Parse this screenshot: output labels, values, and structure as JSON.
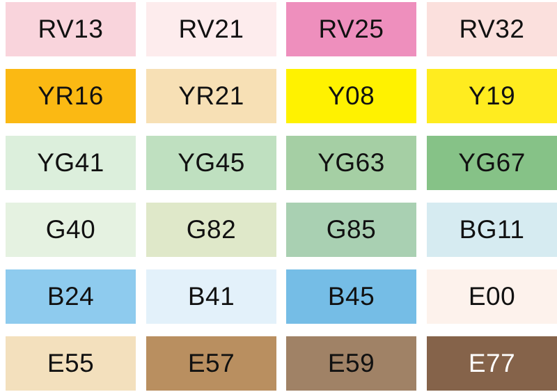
{
  "swatches": [
    {
      "code": "RV13",
      "color": "#f9d4dc",
      "text": "#111111"
    },
    {
      "code": "RV21",
      "color": "#fdeced",
      "text": "#111111"
    },
    {
      "code": "RV25",
      "color": "#ee8fbd",
      "text": "#111111"
    },
    {
      "code": "RV32",
      "color": "#fbe0dd",
      "text": "#111111"
    },
    {
      "code": "YR16",
      "color": "#fbb913",
      "text": "#111111"
    },
    {
      "code": "YR21",
      "color": "#f7e0b5",
      "text": "#111111"
    },
    {
      "code": "Y08",
      "color": "#fff200",
      "text": "#111111"
    },
    {
      "code": "Y19",
      "color": "#ffec1f",
      "text": "#111111"
    },
    {
      "code": "YG41",
      "color": "#dcefdc",
      "text": "#111111"
    },
    {
      "code": "YG45",
      "color": "#bfe0c0",
      "text": "#111111"
    },
    {
      "code": "YG63",
      "color": "#a5cfa4",
      "text": "#111111"
    },
    {
      "code": "YG67",
      "color": "#86c287",
      "text": "#111111"
    },
    {
      "code": "G40",
      "color": "#e5f2e1",
      "text": "#111111"
    },
    {
      "code": "G82",
      "color": "#dfe8c9",
      "text": "#111111"
    },
    {
      "code": "G85",
      "color": "#a9d0b2",
      "text": "#111111"
    },
    {
      "code": "BG11",
      "color": "#d6ebf1",
      "text": "#111111"
    },
    {
      "code": "B24",
      "color": "#8ecbee",
      "text": "#111111"
    },
    {
      "code": "B41",
      "color": "#e3f1fa",
      "text": "#111111"
    },
    {
      "code": "B45",
      "color": "#75bde6",
      "text": "#111111"
    },
    {
      "code": "E00",
      "color": "#fdf2ec",
      "text": "#111111"
    },
    {
      "code": "E55",
      "color": "#f3e0bd",
      "text": "#111111"
    },
    {
      "code": "E57",
      "color": "#b98f60",
      "text": "#111111"
    },
    {
      "code": "E59",
      "color": "#a08266",
      "text": "#111111"
    },
    {
      "code": "E77",
      "color": "#85634a",
      "text": "#ffffff"
    }
  ]
}
